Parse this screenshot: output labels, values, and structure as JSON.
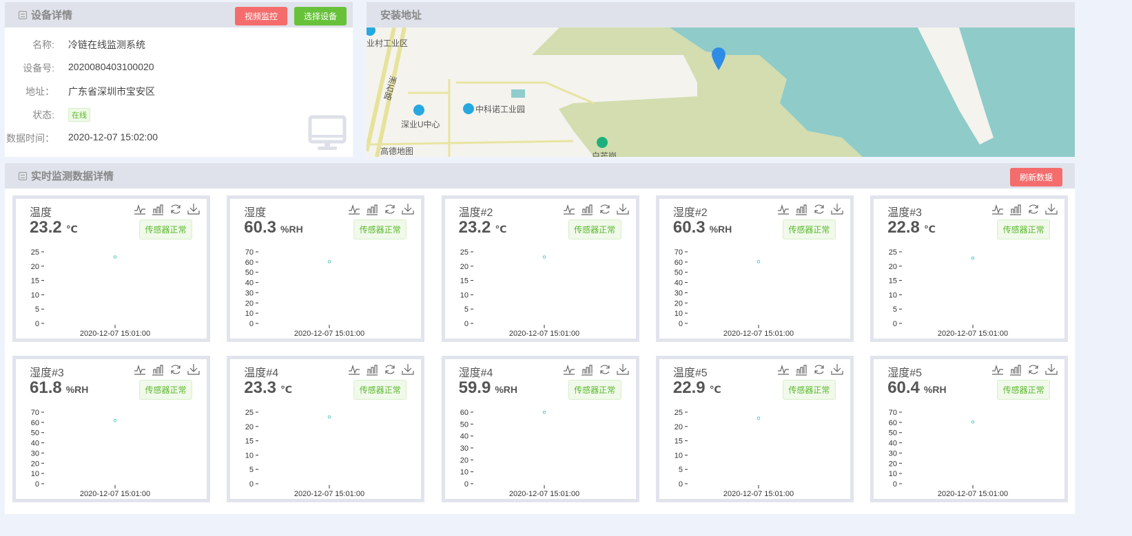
{
  "device": {
    "title": "设备详情",
    "video_btn": "视频监控",
    "select_btn": "选择设备",
    "fields": [
      {
        "k": "名称:",
        "v": "冷链在线监测系统"
      },
      {
        "k": "设备号:",
        "v": "2020080403100020"
      },
      {
        "k": "地址：",
        "v": "广东省深圳市宝安区"
      },
      {
        "k": "状态:",
        "v": "在线",
        "tag": true
      },
      {
        "k": "数据时间：",
        "v": "2020-12-07 15:02:00"
      }
    ],
    "icon": "monitor-icon"
  },
  "map": {
    "title": "安装地址",
    "labels": [
      "业村工业区",
      "洲石路",
      "深业U中心",
      "中科诺工业园",
      "高德地图",
      "白芒岗"
    ],
    "marker": "map-pin-icon"
  },
  "monitor": {
    "title": "实时监测数据详情",
    "refresh_btn": "刷新数据",
    "status_label": "传感器正常",
    "sensors": [
      {
        "name": "温度",
        "value": "23.2",
        "unit": "℃",
        "ymax": 25,
        "ticks": [
          25,
          20,
          15,
          10,
          5,
          0
        ],
        "x": "2020-12-07 15:01:00"
      },
      {
        "name": "湿度",
        "value": "60.3",
        "unit": "%RH",
        "ymax": 70,
        "ticks": [
          70,
          60,
          50,
          40,
          30,
          20,
          10,
          0
        ],
        "x": "2020-12-07 15:01:00"
      },
      {
        "name": "温度#2",
        "value": "23.2",
        "unit": "℃",
        "ymax": 25,
        "ticks": [
          25,
          20,
          15,
          10,
          5,
          0
        ],
        "x": "2020-12-07 15:01:00"
      },
      {
        "name": "湿度#2",
        "value": "60.3",
        "unit": "%RH",
        "ymax": 70,
        "ticks": [
          70,
          60,
          50,
          40,
          30,
          20,
          10,
          0
        ],
        "x": "2020-12-07 15:01:00"
      },
      {
        "name": "温度#3",
        "value": "22.8",
        "unit": "℃",
        "ymax": 25,
        "ticks": [
          25,
          20,
          15,
          10,
          5,
          0
        ],
        "x": "2020-12-07 15:01:00"
      },
      {
        "name": "湿度#3",
        "value": "61.8",
        "unit": "%RH",
        "ymax": 70,
        "ticks": [
          70,
          60,
          50,
          40,
          30,
          20,
          10,
          0
        ],
        "x": "2020-12-07 15:01:00"
      },
      {
        "name": "温度#4",
        "value": "23.3",
        "unit": "℃",
        "ymax": 25,
        "ticks": [
          25,
          20,
          15,
          10,
          5,
          0
        ],
        "x": "2020-12-07 15:01:00"
      },
      {
        "name": "湿度#4",
        "value": "59.9",
        "unit": "%RH",
        "ymax": 60,
        "ticks": [
          60,
          50,
          40,
          30,
          20,
          10,
          0
        ],
        "x": "2020-12-07 15:01:00"
      },
      {
        "name": "温度#5",
        "value": "22.9",
        "unit": "℃",
        "ymax": 25,
        "ticks": [
          25,
          20,
          15,
          10,
          5,
          0
        ],
        "x": "2020-12-07 15:01:00"
      },
      {
        "name": "湿度#5",
        "value": "60.4",
        "unit": "%RH",
        "ymax": 70,
        "ticks": [
          70,
          60,
          50,
          40,
          30,
          20,
          10,
          0
        ],
        "x": "2020-12-07 15:01:00"
      }
    ]
  },
  "colors": {
    "danger": "#f56c6c",
    "success": "#67c23a",
    "point": "#5bc7c7",
    "water": "#90cccc"
  }
}
